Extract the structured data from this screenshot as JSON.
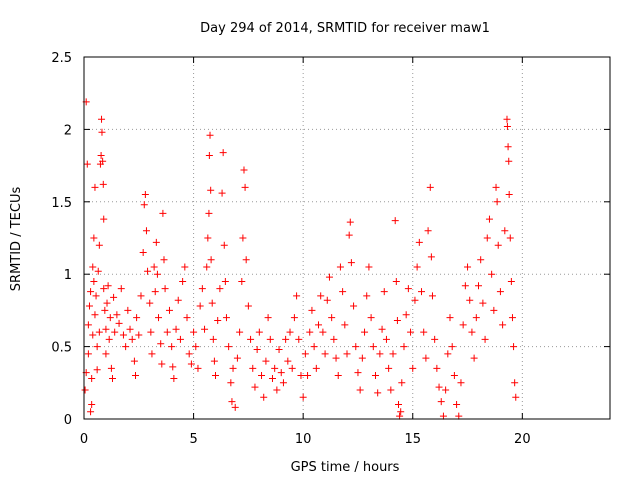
{
  "chart_data": {
    "type": "scatter",
    "title": "Day 294 of 2014, SRMTID for receiver maw1",
    "xlabel": "GPS time / hours",
    "ylabel": "SRMTID / TECUs",
    "xlim": [
      0,
      24
    ],
    "ylim": [
      0,
      2.5
    ],
    "x_ticks": [
      0,
      5,
      10,
      15,
      20
    ],
    "x_tick_labels": [
      "0",
      "5",
      "10",
      "15",
      "20"
    ],
    "y_ticks": [
      0,
      0.5,
      1,
      1.5,
      2,
      2.5
    ],
    "y_tick_labels": [
      "0",
      "0.5",
      "1",
      "1.5",
      "2",
      "2.5"
    ],
    "grid": true,
    "marker": "plus",
    "point_color": "#ff0000",
    "series": [
      {
        "name": "maw1 SRMTID",
        "points": [
          [
            0.1,
            2.19
          ],
          [
            0.15,
            1.76
          ],
          [
            0.05,
            0.2
          ],
          [
            0.1,
            0.32
          ],
          [
            0.2,
            0.45
          ],
          [
            0.2,
            0.65
          ],
          [
            0.25,
            0.78
          ],
          [
            0.3,
            0.88
          ],
          [
            0.3,
            0.05
          ],
          [
            0.35,
            0.1
          ],
          [
            0.35,
            0.28
          ],
          [
            0.4,
            0.58
          ],
          [
            0.4,
            1.05
          ],
          [
            0.45,
            1.25
          ],
          [
            0.45,
            0.95
          ],
          [
            0.5,
            1.6
          ],
          [
            0.5,
            0.72
          ],
          [
            0.55,
            0.85
          ],
          [
            0.6,
            0.5
          ],
          [
            0.6,
            0.34
          ],
          [
            0.65,
            1.02
          ],
          [
            0.7,
            1.2
          ],
          [
            0.7,
            0.6
          ],
          [
            0.75,
            1.76
          ],
          [
            0.78,
            1.82
          ],
          [
            0.8,
            2.07
          ],
          [
            0.82,
            1.98
          ],
          [
            0.85,
            1.78
          ],
          [
            0.88,
            1.62
          ],
          [
            0.9,
            1.38
          ],
          [
            0.9,
            0.9
          ],
          [
            0.95,
            0.75
          ],
          [
            1.0,
            0.62
          ],
          [
            1.0,
            0.45
          ],
          [
            1.05,
            0.8
          ],
          [
            1.1,
            0.92
          ],
          [
            1.15,
            0.55
          ],
          [
            1.2,
            0.7
          ],
          [
            1.25,
            0.35
          ],
          [
            1.3,
            0.28
          ],
          [
            1.35,
            0.84
          ],
          [
            1.4,
            0.6
          ],
          [
            1.5,
            0.72
          ],
          [
            1.6,
            0.66
          ],
          [
            1.7,
            0.9
          ],
          [
            1.8,
            0.58
          ],
          [
            1.9,
            0.5
          ],
          [
            2.0,
            0.75
          ],
          [
            2.1,
            0.62
          ],
          [
            2.2,
            0.55
          ],
          [
            2.3,
            0.4
          ],
          [
            2.35,
            0.3
          ],
          [
            2.4,
            0.7
          ],
          [
            2.5,
            0.58
          ],
          [
            2.6,
            0.85
          ],
          [
            2.7,
            1.15
          ],
          [
            2.75,
            1.48
          ],
          [
            2.8,
            1.55
          ],
          [
            2.85,
            1.3
          ],
          [
            2.9,
            1.02
          ],
          [
            3.0,
            0.8
          ],
          [
            3.05,
            0.6
          ],
          [
            3.1,
            0.45
          ],
          [
            3.2,
            1.05
          ],
          [
            3.25,
            0.88
          ],
          [
            3.3,
            1.22
          ],
          [
            3.35,
            1.0
          ],
          [
            3.4,
            0.7
          ],
          [
            3.5,
            0.52
          ],
          [
            3.55,
            0.38
          ],
          [
            3.6,
            1.42
          ],
          [
            3.65,
            1.1
          ],
          [
            3.7,
            0.9
          ],
          [
            3.8,
            0.6
          ],
          [
            3.9,
            0.75
          ],
          [
            4.0,
            0.5
          ],
          [
            4.05,
            0.36
          ],
          [
            4.1,
            0.28
          ],
          [
            4.2,
            0.62
          ],
          [
            4.3,
            0.82
          ],
          [
            4.4,
            0.55
          ],
          [
            4.5,
            0.95
          ],
          [
            4.6,
            1.05
          ],
          [
            4.7,
            0.7
          ],
          [
            4.8,
            0.45
          ],
          [
            4.9,
            0.38
          ],
          [
            5.0,
            0.6
          ],
          [
            5.1,
            0.5
          ],
          [
            5.2,
            0.35
          ],
          [
            5.3,
            0.78
          ],
          [
            5.4,
            0.9
          ],
          [
            5.5,
            0.62
          ],
          [
            5.6,
            1.05
          ],
          [
            5.65,
            1.25
          ],
          [
            5.7,
            1.42
          ],
          [
            5.72,
            1.82
          ],
          [
            5.75,
            1.96
          ],
          [
            5.78,
            1.58
          ],
          [
            5.8,
            1.1
          ],
          [
            5.85,
            0.8
          ],
          [
            5.9,
            0.55
          ],
          [
            5.95,
            0.4
          ],
          [
            6.0,
            0.3
          ],
          [
            6.1,
            0.68
          ],
          [
            6.2,
            0.9
          ],
          [
            6.3,
            1.56
          ],
          [
            6.35,
            1.84
          ],
          [
            6.4,
            1.2
          ],
          [
            6.45,
            0.95
          ],
          [
            6.5,
            0.7
          ],
          [
            6.6,
            0.5
          ],
          [
            6.7,
            0.25
          ],
          [
            6.75,
            0.12
          ],
          [
            6.8,
            0.35
          ],
          [
            6.9,
            0.08
          ],
          [
            7.0,
            0.42
          ],
          [
            7.1,
            0.6
          ],
          [
            7.2,
            0.95
          ],
          [
            7.25,
            1.25
          ],
          [
            7.3,
            1.72
          ],
          [
            7.35,
            1.6
          ],
          [
            7.4,
            1.1
          ],
          [
            7.5,
            0.78
          ],
          [
            7.6,
            0.55
          ],
          [
            7.7,
            0.35
          ],
          [
            7.8,
            0.22
          ],
          [
            7.9,
            0.48
          ],
          [
            8.0,
            0.6
          ],
          [
            8.1,
            0.3
          ],
          [
            8.2,
            0.15
          ],
          [
            8.3,
            0.4
          ],
          [
            8.4,
            0.7
          ],
          [
            8.5,
            0.55
          ],
          [
            8.6,
            0.28
          ],
          [
            8.7,
            0.35
          ],
          [
            8.8,
            0.2
          ],
          [
            8.9,
            0.48
          ],
          [
            9.0,
            0.32
          ],
          [
            9.1,
            0.25
          ],
          [
            9.2,
            0.55
          ],
          [
            9.3,
            0.4
          ],
          [
            9.4,
            0.6
          ],
          [
            9.5,
            0.35
          ],
          [
            9.6,
            0.7
          ],
          [
            9.7,
            0.85
          ],
          [
            9.8,
            0.55
          ],
          [
            9.9,
            0.3
          ],
          [
            10.0,
            0.15
          ],
          [
            10.1,
            0.45
          ],
          [
            10.2,
            0.3
          ],
          [
            10.3,
            0.6
          ],
          [
            10.4,
            0.75
          ],
          [
            10.5,
            0.5
          ],
          [
            10.6,
            0.35
          ],
          [
            10.7,
            0.65
          ],
          [
            10.8,
            0.85
          ],
          [
            10.9,
            0.6
          ],
          [
            11.0,
            0.45
          ],
          [
            11.1,
            0.82
          ],
          [
            11.2,
            0.98
          ],
          [
            11.3,
            0.7
          ],
          [
            11.4,
            0.55
          ],
          [
            11.5,
            0.42
          ],
          [
            11.6,
            0.3
          ],
          [
            11.7,
            1.05
          ],
          [
            11.8,
            0.88
          ],
          [
            11.9,
            0.65
          ],
          [
            12.0,
            0.45
          ],
          [
            12.1,
            1.27
          ],
          [
            12.15,
            1.36
          ],
          [
            12.2,
            1.08
          ],
          [
            12.3,
            0.78
          ],
          [
            12.4,
            0.5
          ],
          [
            12.5,
            0.32
          ],
          [
            12.6,
            0.2
          ],
          [
            12.7,
            0.42
          ],
          [
            12.8,
            0.6
          ],
          [
            12.9,
            0.85
          ],
          [
            13.0,
            1.05
          ],
          [
            13.1,
            0.7
          ],
          [
            13.2,
            0.5
          ],
          [
            13.3,
            0.3
          ],
          [
            13.4,
            0.18
          ],
          [
            13.5,
            0.45
          ],
          [
            13.6,
            0.62
          ],
          [
            13.7,
            0.88
          ],
          [
            13.8,
            0.55
          ],
          [
            13.9,
            0.35
          ],
          [
            14.0,
            0.2
          ],
          [
            14.1,
            0.45
          ],
          [
            14.2,
            1.37
          ],
          [
            14.25,
            0.95
          ],
          [
            14.3,
            0.68
          ],
          [
            14.35,
            0.1
          ],
          [
            14.4,
            0.02
          ],
          [
            14.45,
            0.05
          ],
          [
            14.5,
            0.25
          ],
          [
            14.6,
            0.5
          ],
          [
            14.7,
            0.72
          ],
          [
            14.8,
            0.9
          ],
          [
            14.9,
            0.6
          ],
          [
            15.0,
            0.35
          ],
          [
            15.1,
            0.82
          ],
          [
            15.2,
            1.05
          ],
          [
            15.3,
            1.22
          ],
          [
            15.4,
            0.88
          ],
          [
            15.5,
            0.6
          ],
          [
            15.6,
            0.42
          ],
          [
            15.7,
            1.3
          ],
          [
            15.8,
            1.6
          ],
          [
            15.85,
            1.12
          ],
          [
            15.9,
            0.85
          ],
          [
            16.0,
            0.55
          ],
          [
            16.1,
            0.35
          ],
          [
            16.2,
            0.22
          ],
          [
            16.3,
            0.12
          ],
          [
            16.4,
            0.02
          ],
          [
            16.5,
            0.2
          ],
          [
            16.6,
            0.45
          ],
          [
            16.7,
            0.7
          ],
          [
            16.8,
            0.5
          ],
          [
            16.9,
            0.3
          ],
          [
            17.0,
            0.1
          ],
          [
            17.1,
            0.02
          ],
          [
            17.2,
            0.25
          ],
          [
            17.3,
            0.65
          ],
          [
            17.4,
            0.92
          ],
          [
            17.5,
            1.05
          ],
          [
            17.6,
            0.82
          ],
          [
            17.7,
            0.6
          ],
          [
            17.8,
            0.42
          ],
          [
            17.9,
            0.7
          ],
          [
            18.0,
            0.92
          ],
          [
            18.1,
            1.1
          ],
          [
            18.2,
            0.8
          ],
          [
            18.3,
            0.55
          ],
          [
            18.4,
            1.25
          ],
          [
            18.5,
            1.38
          ],
          [
            18.6,
            1.0
          ],
          [
            18.7,
            0.75
          ],
          [
            18.8,
            1.6
          ],
          [
            18.85,
            1.5
          ],
          [
            18.9,
            1.2
          ],
          [
            19.0,
            0.88
          ],
          [
            19.1,
            0.65
          ],
          [
            19.2,
            1.3
          ],
          [
            19.3,
            2.07
          ],
          [
            19.32,
            2.02
          ],
          [
            19.35,
            1.88
          ],
          [
            19.38,
            1.78
          ],
          [
            19.4,
            1.55
          ],
          [
            19.45,
            1.25
          ],
          [
            19.5,
            0.95
          ],
          [
            19.55,
            0.7
          ],
          [
            19.6,
            0.5
          ],
          [
            19.65,
            0.25
          ],
          [
            19.7,
            0.15
          ]
        ]
      }
    ]
  }
}
